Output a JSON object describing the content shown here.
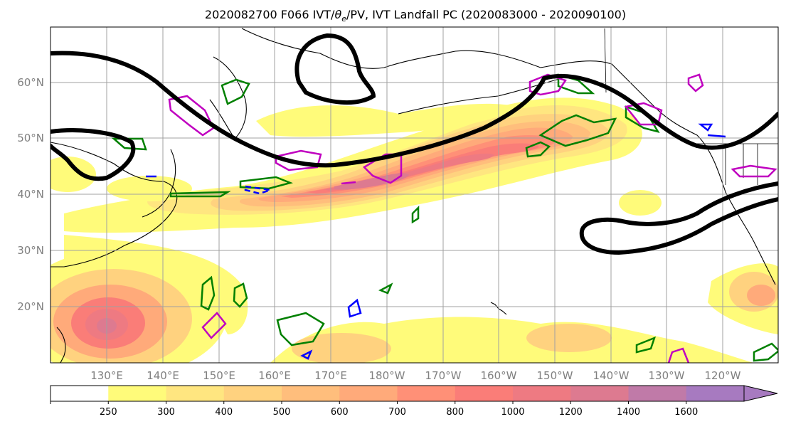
{
  "figure": {
    "title_prefix": "2020082700 F066 IVT/",
    "title_theta": "θ",
    "title_sub": "e",
    "title_suffix": "/PV, IVT Landfall PC (2020083000 - 2020090100)"
  },
  "map": {
    "lat_labels": [
      "60°N",
      "50°N",
      "40°N",
      "30°N",
      "20°N"
    ],
    "lon_labels": [
      "130°E",
      "140°E",
      "150°E",
      "160°E",
      "170°E",
      "180°W",
      "170°W",
      "160°W",
      "150°W",
      "140°W",
      "130°W",
      "120°W"
    ],
    "colors": {
      "theta_e_contour": "#000000",
      "pv_positive": "#008000",
      "pv_negative": "#0000ff",
      "pv_high": "#c000c0",
      "gridlines": "#a0a0a0",
      "coastline": "#000000"
    }
  },
  "colorbar": {
    "levels": [
      "250",
      "300",
      "400",
      "500",
      "600",
      "700",
      "800",
      "1000",
      "1200",
      "1400",
      "1600"
    ],
    "colors": [
      "#ffffff",
      "#fffb7a",
      "#ffe680",
      "#ffd27f",
      "#ffbe7c",
      "#ffaa7a",
      "#ff9077",
      "#fa7d78",
      "#ee7a82",
      "#dd7a90",
      "#c07aa8",
      "#a77ac0"
    ],
    "extend": "max"
  }
}
